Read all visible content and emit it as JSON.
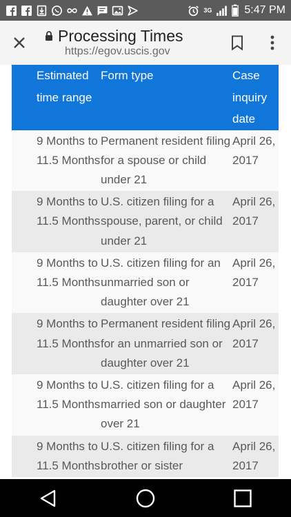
{
  "status_bar": {
    "time": "5:47 PM",
    "left_icons": [
      "facebook-icon",
      "facebook-icon",
      "download-icon",
      "whatsapp-icon",
      "infinity-icon",
      "warning-icon",
      "message-icon",
      "image-icon",
      "play-icon"
    ],
    "right_icons": [
      "alarm-icon",
      "3g-icon",
      "signal-icon",
      "battery-icon"
    ],
    "network_label": "3G"
  },
  "toolbar": {
    "title": "Processing Times",
    "url": "https://egov.uscis.gov"
  },
  "table": {
    "header_color": "#1176d9",
    "columns": [
      "Estimated time range",
      "Form type",
      "Case inquiry date"
    ],
    "rows": [
      [
        "9 Months to 11.5 Months",
        "Permanent resident filing for a spouse or child under 21",
        "April 26, 2017"
      ],
      [
        "9 Months to 11.5 Months",
        "U.S. citizen filing for a spouse, parent, or child under 21",
        "April 26, 2017"
      ],
      [
        "9 Months to 11.5 Months",
        "U.S. citizen filing for an unmarried son or daughter over 21",
        "April 26, 2017"
      ],
      [
        "9 Months to 11.5 Months",
        "Permanent resident filing for an unmarried son or daughter over 21",
        "April 26, 2017"
      ],
      [
        "9 Months to 11.5 Months",
        "U.S. citizen filing for a married son or daughter over 21",
        "April 26, 2017"
      ],
      [
        "9 Months to 11.5 Months",
        "U.S. citizen filing for a brother or sister",
        "April 26, 2017"
      ]
    ]
  }
}
